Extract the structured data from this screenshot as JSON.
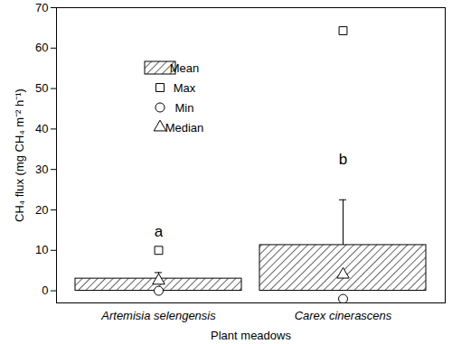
{
  "chart_data": {
    "type": "bar",
    "categories": [
      "Artemisia selengensis",
      "Carex cinerascens"
    ],
    "series": [
      {
        "name": "Mean",
        "type": "bar",
        "color": "#000000",
        "values": [
          3.0,
          11.3
        ],
        "errors": [
          1.5,
          11.2
        ]
      },
      {
        "name": "Max",
        "type": "scatter",
        "marker": "square",
        "values": [
          10.0,
          64.3
        ]
      },
      {
        "name": "Min",
        "type": "scatter",
        "marker": "circle",
        "values": [
          0.0,
          -2.0
        ]
      },
      {
        "name": "Median",
        "type": "scatter",
        "marker": "triangle",
        "values": [
          2.5,
          4.0
        ]
      }
    ],
    "annotations": [
      "a",
      "b"
    ],
    "x_label": "Plant meadows",
    "y_label": "CH₄ flux (mg CH₄ m⁻² h⁻¹)",
    "ylim": [
      -3,
      70
    ],
    "yticks": [
      0,
      10,
      20,
      30,
      40,
      50,
      60,
      70
    ],
    "legend": "upper left"
  }
}
